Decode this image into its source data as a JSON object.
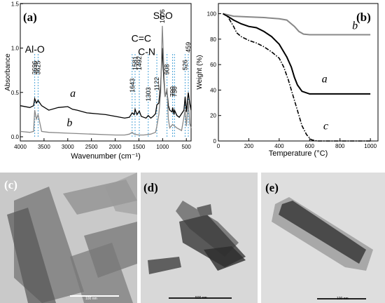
{
  "chart_data": [
    {
      "panel_label": "(a)",
      "type": "line",
      "xlabel": "Wavenumber (cm⁻¹)",
      "ylabel": "Absorbance",
      "xlim": [
        4000,
        400
      ],
      "ylim": [
        0,
        1.55
      ],
      "x_ticks": [
        "4000",
        "3500",
        "3000",
        "2500",
        "2000",
        "1500",
        "1000",
        "500"
      ],
      "y_ticks": [
        "0.0",
        "0.5",
        "1.0",
        "1.5"
      ],
      "series": [
        {
          "name": "a",
          "x": [
            4000,
            3800,
            3720,
            3696,
            3660,
            3625,
            3550,
            3400,
            3200,
            3000,
            2900,
            2800,
            2600,
            2400,
            2200,
            2000,
            1800,
            1700,
            1643,
            1600,
            1581,
            1540,
            1492,
            1450,
            1400,
            1350,
            1303,
            1250,
            1200,
            1150,
            1122,
            1080,
            1040,
            1006,
            980,
            950,
            908,
            880,
            850,
            800,
            790,
            760,
            750,
            700,
            650,
            600,
            550,
            526,
            500,
            459,
            430,
            400
          ],
          "y": [
            0.35,
            0.33,
            0.35,
            0.43,
            0.38,
            0.41,
            0.35,
            0.3,
            0.33,
            0.34,
            0.31,
            0.3,
            0.27,
            0.26,
            0.25,
            0.23,
            0.21,
            0.22,
            0.27,
            0.25,
            0.31,
            0.25,
            0.29,
            0.23,
            0.22,
            0.21,
            0.24,
            0.21,
            0.23,
            0.26,
            0.36,
            0.38,
            0.6,
            1.0,
            0.7,
            0.45,
            0.52,
            0.35,
            0.3,
            0.28,
            0.33,
            0.25,
            0.3,
            0.24,
            0.22,
            0.26,
            0.3,
            0.45,
            0.28,
            0.5,
            0.38,
            0.3
          ]
        },
        {
          "name": "b",
          "x": [
            4000,
            3800,
            3720,
            3696,
            3660,
            3625,
            3550,
            3400,
            3000,
            2500,
            2000,
            1800,
            1700,
            1643,
            1600,
            1500,
            1400,
            1250,
            1150,
            1122,
            1080,
            1040,
            1006,
            980,
            950,
            908,
            880,
            850,
            790,
            750,
            700,
            600,
            526,
            500,
            459,
            430,
            400
          ],
          "y": [
            0.06,
            0.05,
            0.06,
            0.3,
            0.2,
            0.25,
            0.06,
            0.05,
            0.04,
            0.03,
            0.02,
            0.02,
            0.03,
            0.05,
            0.03,
            0.02,
            0.02,
            0.03,
            0.05,
            0.12,
            0.25,
            0.5,
            1.25,
            0.85,
            0.45,
            0.55,
            0.2,
            0.1,
            0.14,
            0.12,
            0.1,
            0.07,
            0.3,
            0.12,
            0.4,
            0.15,
            0.1
          ]
        }
      ],
      "series_labels": [
        "a",
        "b"
      ],
      "annotations": [
        "Al-O",
        "3696",
        "3625",
        "1643",
        "1581",
        "1492",
        "1303",
        "1122",
        "908",
        "790",
        "750",
        "526",
        "459",
        "C=C",
        "C-N",
        "Si-O",
        "1006"
      ]
    },
    {
      "panel_label": "(b)",
      "type": "line",
      "xlabel": "Temperature (°C)",
      "ylabel": "Weight (%)",
      "xlim": [
        0,
        1050
      ],
      "ylim": [
        0,
        108
      ],
      "x_ticks": [
        "0",
        "200",
        "400",
        "600",
        "800",
        "1000"
      ],
      "y_ticks": [
        "0",
        "20",
        "40",
        "60",
        "80",
        "100"
      ],
      "series": [
        {
          "name": "a",
          "x": [
            30,
            60,
            100,
            150,
            200,
            250,
            300,
            350,
            400,
            450,
            480,
            500,
            520,
            550,
            600,
            650,
            700,
            800,
            900,
            1000
          ],
          "y": [
            100,
            98,
            95,
            92,
            90,
            89,
            86,
            82,
            76,
            66,
            58,
            50,
            44,
            39,
            37,
            37,
            37,
            37,
            37,
            37
          ]
        },
        {
          "name": "b",
          "x": [
            30,
            100,
            200,
            300,
            400,
            450,
            500,
            530,
            560,
            600,
            700,
            800,
            900,
            1000
          ],
          "y": [
            100,
            98,
            97.5,
            97,
            96,
            95,
            90,
            86,
            84,
            83.5,
            83.5,
            83.5,
            83.5,
            83.5
          ]
        },
        {
          "name": "c",
          "x": [
            30,
            60,
            100,
            120,
            150,
            200,
            250,
            300,
            350,
            400,
            430,
            460,
            490,
            520,
            550,
            580,
            610,
            650,
            700,
            800,
            900,
            1000
          ],
          "y": [
            100,
            98,
            90,
            85,
            82,
            79,
            77,
            74,
            70,
            65,
            58,
            48,
            36,
            24,
            12,
            5,
            1,
            0,
            0,
            0,
            0,
            0
          ]
        }
      ],
      "series_labels": [
        "b",
        "a",
        "c"
      ]
    }
  ],
  "tem_images": [
    {
      "panel_label": "(c)",
      "scale_bar": "100 nm"
    },
    {
      "panel_label": "(d)",
      "scale_bar": "500 nm"
    },
    {
      "panel_label": "(e)",
      "scale_bar": "100 nm"
    }
  ]
}
